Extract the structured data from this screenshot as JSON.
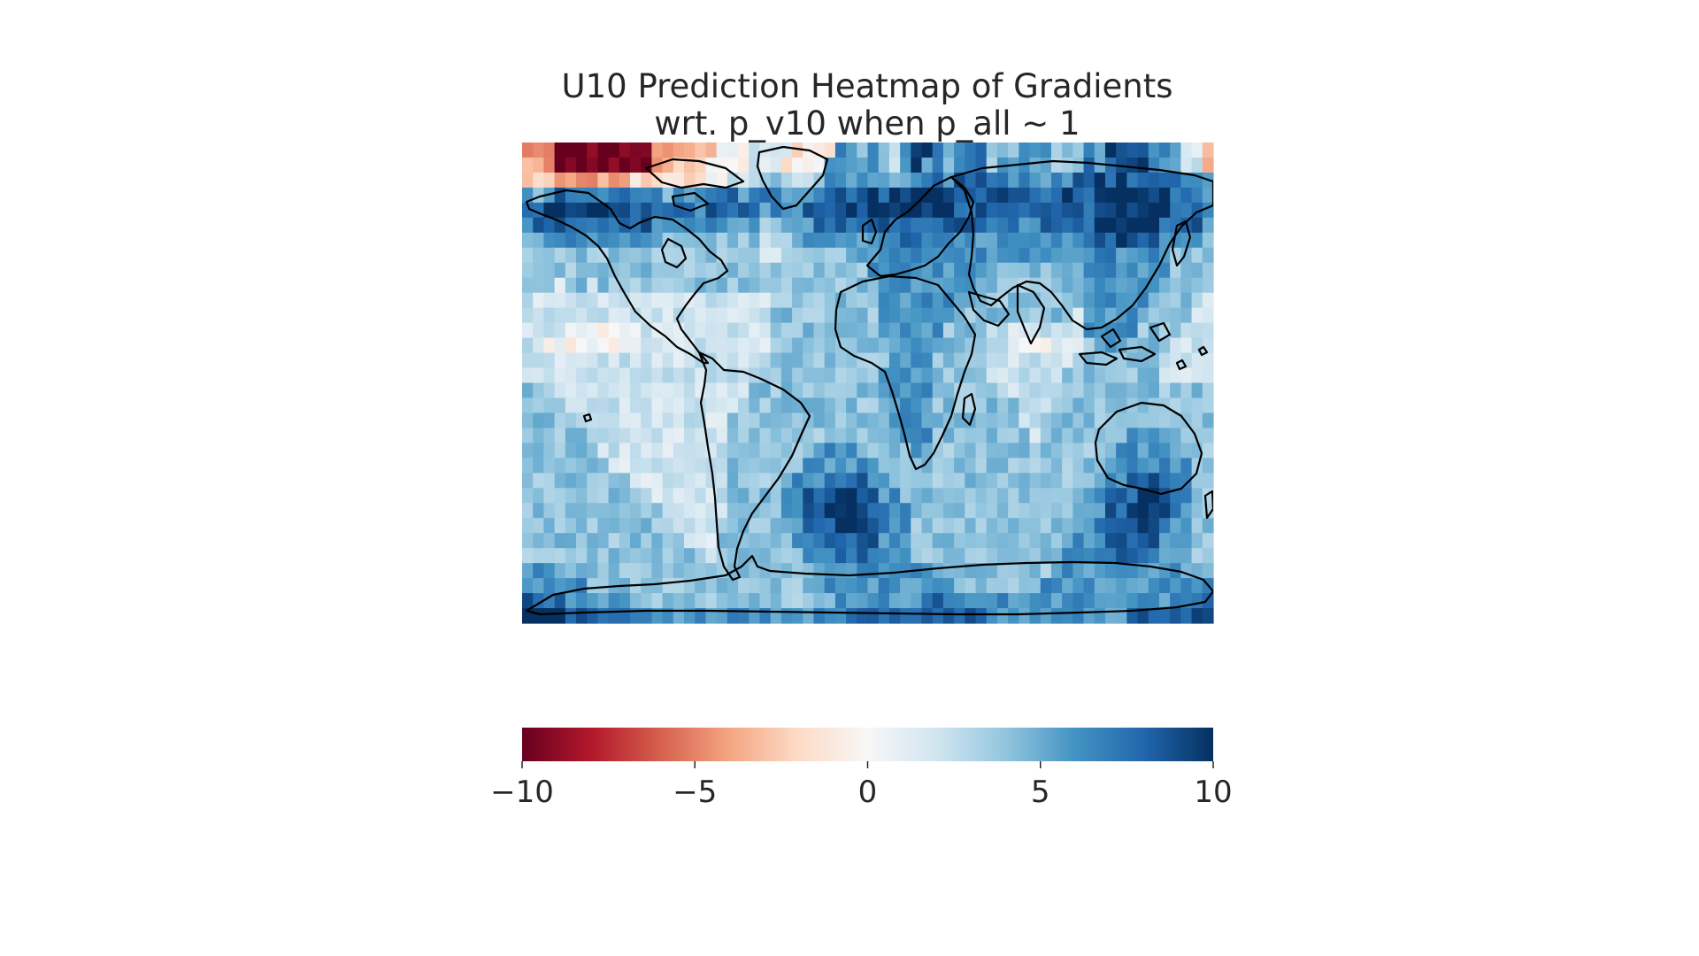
{
  "chart_data": {
    "type": "heatmap",
    "title_line1": "U10 Prediction Heatmap of Gradients",
    "title_line2": "wrt. p_v10 when p_all ~ 1",
    "colormap": "RdBu",
    "vmin": -10,
    "vmax": 10,
    "colorbar_orientation": "horizontal",
    "colorbar_placement": "bottom",
    "colorbar_ticks": [
      -10,
      -5,
      0,
      5,
      10
    ],
    "colorbar_tick_labels": [
      "−10",
      "−5",
      "0",
      "5",
      "10"
    ],
    "grid_rows": 32,
    "grid_cols": 64,
    "overlay": "coastlines",
    "projection": "plate-carree",
    "lon_range": [
      -180,
      180
    ],
    "lat_range": [
      -90,
      90
    ],
    "rows": [
      "DDDAAAAAAAAADDDDDDFFFGGGGEFEEIIHIHGIKKJHIJJHHHIIIHHHJHKJJJIJIGGD",
      "DDDAAAAAAAAADDEEEFFFFGFGEFFFIIIHIHGIKIJHIJJHIIIIIHHHJHJKKKIIIGGD",
      "EEEDDDDDDDEEEEEEEFFGGGHHGGGHIIIIIIHIIJJIJJJJJIJIHIIJJKJKJJJJJIII",
      "IHIJJIJIJJIIIHIIIIJJIJJIIIIIJJJJKJKJKKKKJJJJKJJJJJKJJKKKKKKKJJII",
      "JJKKKKKKKKJJJJJJIJJJJJIJIIJJJJKJKKKKKKKKJJKJJJJJJJJJJKKKKKKKJJJI",
      "IJJJJJJJJJJJIIIIIIIIIIHHIIIJJJJJJJJJJJJJJJJIJJIIJJJJJKKKKKKJJJJI",
      "HHIIIIIIIIIIIHHHHHHHHHGGHIIIIIIIIIIJJIIIIIIIIIIIIIIIJKJKJJJIIIIH",
      "HHHHHHHHHHHHHHHHHHHHHHGGHHHHHHHIIIIIIIIIIIIIIIIIIIIIIJJIIIIIHHHH",
      "HHHHHHHHHHHHHHHHHHHHHHHHHHHHHHHHIIIIIIIIIIIHHHHHHHHHIJIIIIIIHHHH",
      "HHHGHHGHHHHHHHHHHHHHHHHHHHHHHHHHHIIIIIIIIIHHHHHHHHHHIIIIIIIHHHHH",
      "GGGGGGGGGGGGGGGGGGGGGGGHHHHHHHHHHIIIIIIIIHHHHHHHHHHHIIIIIIHHHHHG",
      "GGGGGGGGGGGGGGGGGGGGGGGHHHHHHHHHHIIIIIIIHHHHHHHHHHHGIIIIIIHHHHGG",
      "GGGGFFFFFFFGGGGGGGGGGGGHHHHHHHHHHIIIIIIHHHHGGGGGGGGGIIIIIHHHHGGG",
      "GGFGFFFFFFFGGGGGGGGGGGGGHHHHHHHHHHIIIIIHHHHGGFFFFGGGHIIIHHHHGGGG",
      "GGGGGGGGGGGGGGGGGGGGGGHHHHHHHHHHHHIIIIHHHHHGGGGGGGGHHHHHHHHGGGGG",
      "GGGGGGGGGGGGGGGGGGGGGHHHHHHHHHHHHIIIIIHHHHHGGGGGGGHHHHHHHHHGGGGG",
      "HHGGGGGGGGGGGGGGGGGGGHHHHHHHHHHHHIIIIIHHHHHHGGGGGHHHHHHHHHHHHHHH",
      "HHHHGGGGGGGGGGGGGGGGHHHHHHHHHHHHHHIIIIHHHHHHHHGGGHHHHHHHHHHHHHHH",
      "HHHHHHGGGGGGGGGGGGGHHHHHHHHHHHHHHHIIIIHHHHHHHHGGHHHHHHHHHHHHHHHH",
      "HHHHHHGGGGGGGGGGGGGHHHHHHHHHHHHHHHHIIIHHHHHHHHHGHHHHHHHHIIIIHHHH",
      "HHHHHHHGGGGGGGGGGGGHHHHHHHHIIIIHHHHHIHHHHHHHHHHHHHHHHHHIIIIIIHHH",
      "HHHHHHHHGGGGGGGGGGGHHHHHHHIIIIIIIHHHHHHHHHHHHHHHHHHHHHIIIIIIIIHH",
      "HHHHHHHHHHGGGGGGGGGHHHHHHIIIJJJJIIHHHHHHHHHHHHHHHHHHHIIIJJJJIIHH",
      "HHHHHHHHHHHHGGGGGGGHHHHHIIJJJKKJJIIHHHHHHHHHHHHHHHHHIIJJJKKJJIHH",
      "HHHHHHHHHHHHHGGGGGGHHHHHIIJJKKKKJJIIHHHHHHHHHHHHHHHHIIJJKKKKJIHH",
      "HHHHHHHHHHHHHHGGGGHHHHHHIIJJJKKKJJIIHHHHHHHHHHHHHHHIIJJJJKJJIIHH",
      "HHHHHHHHHHHHHHHGGGHHHHHHHIIJJJJJJIIIHHHHHHHHHHHHHHIIIIJJJJJIIIHH",
      "HHHHHHHHHHHHHHHHHGHHHHHHHHIIIJJJIIIIHHHHHHHHHHHHHHIIIIIJJJIIIHHH",
      "IIIHHHHHHHHHHHHHHHHHHHHHHHHIIIIIIIIIIIHHHHHHHHHHHIIIIIIIIIIIIHHH",
      "IIIIIIHHHHHHHHHHHHHHHHHHHHHHIIIIIIIIIIIIHHHHHHHHIIIIIIIIIIIIIIII",
      "JJJJIIIIIIHHHHHHHHHHHHHHHHHHHIIIIIIIIJJIIIIIIIIIIIIIIIIIIIIIIIJJ",
      "KKKKJJJJJJIIIIIIIIIIIIIIIIIIIIJJJJJJJJJJJJJIIIIIIIIIIIIIJJJJJJKK"
    ]
  }
}
